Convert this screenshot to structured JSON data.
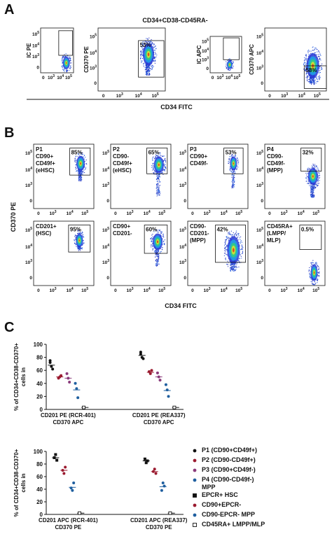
{
  "flow_ticks": [
    "0",
    {
      "base": "10",
      "exp": "3"
    },
    {
      "base": "10",
      "exp": "4"
    },
    {
      "base": "10",
      "exp": "5"
    }
  ],
  "panel_a": {
    "label": "A",
    "title": "CD34+CD38-CD45RA-",
    "x_label": "CD34 FITC",
    "plots": [
      {
        "y_label": "IC PE"
      },
      {
        "y_label": "CD370 PE",
        "gate_percent": "53%"
      },
      {
        "y_label": "IC APC"
      },
      {
        "y_label": "CD370 APC",
        "gate_percent": "58%"
      }
    ]
  },
  "panel_b": {
    "label": "B",
    "y_label": "CD370 PE",
    "x_label": "CD34 FITC",
    "plots": [
      {
        "text": [
          "P1",
          "CD90+",
          "CD49f+",
          "(eHSC)"
        ],
        "gate_percent": "85%"
      },
      {
        "text": [
          "P2",
          "CD90-",
          "CD49f+",
          "(eHSC)"
        ],
        "gate_percent": "65%"
      },
      {
        "text": [
          "P3",
          "CD90+",
          "CD49f-"
        ],
        "gate_percent": "53%"
      },
      {
        "text": [
          "P4",
          "CD90-",
          "CD49f-",
          "(MPP)"
        ],
        "gate_percent": "32%"
      },
      {
        "text": [
          "CD201+",
          "(HSC)"
        ],
        "gate_percent": "95%"
      },
      {
        "text": [
          "CD90+",
          "CD201-"
        ],
        "gate_percent": "60%"
      },
      {
        "text": [
          "CD90-",
          "CD201-",
          "(MPP)"
        ],
        "gate_percent": "42%"
      },
      {
        "text": [
          "CD45RA+",
          "(LMPP/",
          "MLP)"
        ],
        "gate_percent": "0.5%"
      }
    ]
  },
  "panel_c": {
    "label": "C",
    "charts": [
      {
        "type": "dot",
        "y_label": [
          "% of CD34+CD38-CD370+",
          "cells in"
        ],
        "categories": [
          [
            "CD201 PE (RCR-401)",
            "CD370 APC"
          ],
          [
            "CD201 PE (REA337)",
            "CD370 APC"
          ]
        ],
        "ylim": [
          0,
          100
        ],
        "yticks": [
          0,
          20,
          40,
          60,
          80,
          100
        ],
        "series": [
          {
            "name": "P1 (CD90+CD49f+)",
            "color": "#111111",
            "marker": "circle",
            "values": [
              [
                72,
                66,
                62,
                75
              ],
              [
                85,
                80,
                78,
                88
              ]
            ],
            "means": [
              68,
              83
            ]
          },
          {
            "name": "P2 (CD90-CD49f+)",
            "color": "#9b1b30",
            "marker": "circle",
            "values": [
              [
                48,
                50,
                52
              ],
              [
                58,
                55,
                60
              ]
            ],
            "means": [
              50,
              57
            ]
          },
          {
            "name": "P3 (CD90+CD49f-)",
            "color": "#8a3a7a",
            "marker": "circle",
            "values": [
              [
                55,
                48,
                42
              ],
              [
                56,
                50,
                45
              ]
            ],
            "means": [
              48,
              50
            ]
          },
          {
            "name": "P4 (CD90-CD49f-) MPP",
            "color": "#1f5f9f",
            "marker": "circle",
            "values": [
              [
                40,
                32,
                18
              ],
              [
                38,
                30,
                20
              ]
            ],
            "means": [
              30,
              29
            ]
          },
          {
            "color": "#111111",
            "marker": "open-square",
            "values": [
              [
                3
              ],
              [
                3
              ]
            ],
            "means": [
              3,
              3
            ]
          }
        ]
      },
      {
        "type": "dot",
        "y_label": [
          "% of CD34+CD38-CD370+",
          "cells in"
        ],
        "categories": [
          [
            "CD201 APC (RCR-401)",
            "CD370 PE"
          ],
          [
            "CD201 APC (REA337)",
            "CD370 PE"
          ]
        ],
        "ylim": [
          0,
          100
        ],
        "yticks": [
          0,
          20,
          40,
          60,
          80,
          100
        ],
        "series": [
          {
            "name": "EPCR+ HSC",
            "color": "#111111",
            "marker": "square",
            "values": [
              [
                90,
                95,
                86
              ],
              [
                88,
                82,
                85
              ]
            ],
            "means": [
              90,
              85
            ]
          },
          {
            "name": "CD90+EPCR-",
            "color": "#9b1b30",
            "marker": "circle",
            "values": [
              [
                70,
                65,
                75
              ],
              [
                68,
                72,
                65
              ]
            ],
            "means": [
              70,
              68
            ]
          },
          {
            "name": "CD90-EPCR- MPP",
            "color": "#1f5f9f",
            "marker": "circle",
            "values": [
              [
                42,
                38,
                50
              ],
              [
                38,
                50,
                45
              ]
            ],
            "means": [
              43,
              44
            ]
          },
          {
            "name": "CD45RA+ LMPP/MLP",
            "color": "#111111",
            "marker": "open-square",
            "values": [
              [
                2
              ],
              [
                2
              ]
            ],
            "means": [
              2,
              2
            ]
          }
        ]
      }
    ]
  }
}
